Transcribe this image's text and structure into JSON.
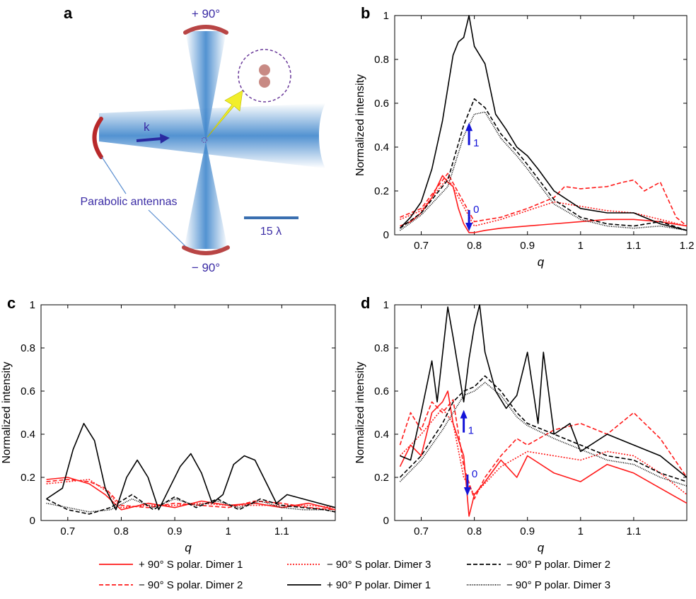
{
  "panels": {
    "a": {
      "label": "a"
    },
    "b": {
      "label": "b"
    },
    "c": {
      "label": "c"
    },
    "d": {
      "label": "d"
    }
  },
  "diagram": {
    "top_angle": "+ 90°",
    "bottom_angle": "− 90°",
    "wavevector": "k",
    "antennas_label": "Parabolic antennas",
    "scale_label": "15 λ",
    "colors": {
      "beam": "#4f92d2",
      "antenna": "#b84545",
      "arrow": "#2a2aa0",
      "pointer": "#f2ee2a",
      "text": "#3b2ca5"
    }
  },
  "chart_data": [
    {
      "panel": "b",
      "type": "line",
      "xlabel": "q",
      "ylabel": "Normalized intensity",
      "xlim": [
        0.65,
        1.2
      ],
      "ylim": [
        0,
        1
      ],
      "xticks": [
        "0.7",
        "0.8",
        "0.9",
        "1",
        "1.1",
        "1.2"
      ],
      "yticks": [
        "0",
        "0.2",
        "0.4",
        "0.6",
        "0.8",
        "1"
      ],
      "annotations": [
        {
          "text": "1",
          "x": 0.79,
          "y": 0.48,
          "direction": "up"
        },
        {
          "text": "0",
          "x": 0.79,
          "y": 0.1,
          "direction": "down"
        }
      ],
      "series": [
        {
          "name": "+ 90° S polar. Dimer 1",
          "color": "#ff1a1a",
          "dash": "solid",
          "x": [
            0.66,
            0.68,
            0.7,
            0.72,
            0.74,
            0.75,
            0.76,
            0.77,
            0.78,
            0.79,
            0.8,
            0.82,
            0.85,
            0.9,
            0.95,
            1.0,
            1.05,
            1.1,
            1.15,
            1.2
          ],
          "y": [
            0.04,
            0.06,
            0.1,
            0.17,
            0.27,
            0.24,
            0.22,
            0.12,
            0.05,
            0.01,
            0.01,
            0.02,
            0.03,
            0.04,
            0.05,
            0.06,
            0.07,
            0.07,
            0.06,
            0.04
          ]
        },
        {
          "name": "− 90° S polar. Dimer 2",
          "color": "#ff1a1a",
          "dash": "dashed",
          "x": [
            0.66,
            0.7,
            0.75,
            0.8,
            0.85,
            0.9,
            0.95,
            0.97,
            1.0,
            1.05,
            1.08,
            1.1,
            1.12,
            1.15,
            1.18,
            1.2
          ],
          "y": [
            0.08,
            0.12,
            0.28,
            0.06,
            0.08,
            0.12,
            0.17,
            0.22,
            0.21,
            0.22,
            0.24,
            0.25,
            0.2,
            0.24,
            0.08,
            0.04
          ]
        },
        {
          "name": "− 90° S polar. Dimer 3",
          "color": "#ff1a1a",
          "dash": "dotted",
          "x": [
            0.66,
            0.7,
            0.75,
            0.8,
            0.85,
            0.9,
            0.95,
            1.0,
            1.05,
            1.1,
            1.15,
            1.2
          ],
          "y": [
            0.07,
            0.11,
            0.26,
            0.04,
            0.07,
            0.11,
            0.15,
            0.13,
            0.11,
            0.1,
            0.07,
            0.04
          ]
        },
        {
          "name": "+ 90° P polar. Dimer 1",
          "color": "#000000",
          "dash": "solid",
          "x": [
            0.66,
            0.68,
            0.7,
            0.72,
            0.74,
            0.76,
            0.77,
            0.78,
            0.79,
            0.8,
            0.82,
            0.84,
            0.86,
            0.88,
            0.9,
            0.92,
            0.95,
            1.0,
            1.05,
            1.1,
            1.15,
            1.2
          ],
          "y": [
            0.03,
            0.08,
            0.15,
            0.3,
            0.52,
            0.82,
            0.88,
            0.9,
            1.0,
            0.86,
            0.78,
            0.55,
            0.48,
            0.4,
            0.36,
            0.3,
            0.2,
            0.12,
            0.1,
            0.1,
            0.05,
            0.02
          ]
        },
        {
          "name": "− 90° P polar. Dimer 2",
          "color": "#000000",
          "dash": "dashed",
          "x": [
            0.66,
            0.7,
            0.75,
            0.78,
            0.8,
            0.82,
            0.85,
            0.88,
            0.9,
            0.95,
            1.0,
            1.05,
            1.1,
            1.15,
            1.2
          ],
          "y": [
            0.03,
            0.1,
            0.25,
            0.5,
            0.62,
            0.58,
            0.46,
            0.38,
            0.32,
            0.16,
            0.08,
            0.05,
            0.04,
            0.06,
            0.02
          ]
        },
        {
          "name": "− 90° P polar. Dimer 3",
          "color": "#000000",
          "dash": "densedot",
          "x": [
            0.66,
            0.7,
            0.75,
            0.78,
            0.8,
            0.82,
            0.85,
            0.88,
            0.9,
            0.95,
            1.0,
            1.05,
            1.1,
            1.15,
            1.2
          ],
          "y": [
            0.02,
            0.09,
            0.22,
            0.45,
            0.55,
            0.56,
            0.44,
            0.36,
            0.3,
            0.14,
            0.07,
            0.04,
            0.03,
            0.04,
            0.02
          ]
        }
      ]
    },
    {
      "panel": "c",
      "type": "line",
      "xlabel": "q",
      "ylabel": "Normalized intensity",
      "xlim": [
        0.65,
        1.2
      ],
      "ylim": [
        0,
        1
      ],
      "xticks": [
        "0.7",
        "0.8",
        "0.9",
        "1",
        "1.1"
      ],
      "yticks": [
        "0",
        "0.2",
        "0.4",
        "0.6",
        "0.8",
        "1"
      ],
      "series": [
        {
          "name": "+ 90° S polar. Dimer 1",
          "color": "#ff1a1a",
          "dash": "solid",
          "x": [
            0.66,
            0.7,
            0.74,
            0.77,
            0.8,
            0.85,
            0.9,
            0.95,
            1.0,
            1.05,
            1.1,
            1.15,
            1.2
          ],
          "y": [
            0.19,
            0.2,
            0.17,
            0.12,
            0.05,
            0.08,
            0.06,
            0.09,
            0.07,
            0.08,
            0.06,
            0.08,
            0.05
          ]
        },
        {
          "name": "− 90° S polar. Dimer 2",
          "color": "#ff1a1a",
          "dash": "dashed",
          "x": [
            0.66,
            0.7,
            0.74,
            0.77,
            0.8,
            0.85,
            0.9,
            0.95,
            1.0,
            1.05,
            1.1,
            1.15,
            1.2
          ],
          "y": [
            0.18,
            0.19,
            0.18,
            0.15,
            0.07,
            0.06,
            0.08,
            0.07,
            0.06,
            0.09,
            0.08,
            0.06,
            0.05
          ]
        },
        {
          "name": "− 90° S polar. Dimer 3",
          "color": "#ff1a1a",
          "dash": "dotted",
          "x": [
            0.66,
            0.7,
            0.74,
            0.77,
            0.8,
            0.85,
            0.9,
            0.95,
            1.0,
            1.05,
            1.1,
            1.15,
            1.2
          ],
          "y": [
            0.17,
            0.18,
            0.19,
            0.14,
            0.06,
            0.07,
            0.07,
            0.08,
            0.07,
            0.07,
            0.07,
            0.07,
            0.06
          ]
        },
        {
          "name": "+ 90° P polar. Dimer 1",
          "color": "#000000",
          "dash": "solid",
          "x": [
            0.66,
            0.69,
            0.71,
            0.73,
            0.75,
            0.77,
            0.79,
            0.81,
            0.83,
            0.85,
            0.87,
            0.89,
            0.91,
            0.93,
            0.95,
            0.97,
            0.99,
            1.01,
            1.03,
            1.05,
            1.07,
            1.09,
            1.11,
            1.14,
            1.17,
            1.2
          ],
          "y": [
            0.1,
            0.15,
            0.33,
            0.45,
            0.37,
            0.15,
            0.05,
            0.2,
            0.28,
            0.2,
            0.05,
            0.15,
            0.25,
            0.31,
            0.22,
            0.08,
            0.12,
            0.26,
            0.3,
            0.28,
            0.18,
            0.08,
            0.12,
            0.1,
            0.08,
            0.06
          ]
        },
        {
          "name": "− 90° P polar. Dimer 2",
          "color": "#000000",
          "dash": "dashed",
          "x": [
            0.66,
            0.7,
            0.74,
            0.78,
            0.82,
            0.86,
            0.9,
            0.94,
            0.98,
            1.02,
            1.06,
            1.1,
            1.14,
            1.18,
            1.2
          ],
          "y": [
            0.1,
            0.05,
            0.03,
            0.06,
            0.12,
            0.05,
            0.11,
            0.06,
            0.1,
            0.05,
            0.1,
            0.07,
            0.06,
            0.05,
            0.04
          ]
        },
        {
          "name": "− 90° P polar. Dimer 3",
          "color": "#000000",
          "dash": "densedot",
          "x": [
            0.66,
            0.7,
            0.74,
            0.78,
            0.82,
            0.86,
            0.9,
            0.94,
            0.98,
            1.02,
            1.06,
            1.1,
            1.14,
            1.18,
            1.2
          ],
          "y": [
            0.08,
            0.06,
            0.04,
            0.05,
            0.1,
            0.06,
            0.1,
            0.07,
            0.09,
            0.06,
            0.09,
            0.06,
            0.05,
            0.05,
            0.04
          ]
        }
      ]
    },
    {
      "panel": "d",
      "type": "line",
      "xlabel": "q",
      "ylabel": "Normalized intensity",
      "xlim": [
        0.65,
        1.2
      ],
      "ylim": [
        0,
        1
      ],
      "xticks": [
        "0.7",
        "0.8",
        "0.9",
        "1",
        "1.1"
      ],
      "yticks": [
        "0",
        "0.2",
        "0.4",
        "0.6",
        "0.8",
        "1"
      ],
      "annotations": [
        {
          "text": "1",
          "x": 0.78,
          "y": 0.48,
          "direction": "up"
        },
        {
          "text": "0",
          "x": 0.787,
          "y": 0.2,
          "direction": "down"
        }
      ],
      "series": [
        {
          "name": "+ 90° S polar. Dimer 1",
          "color": "#ff1a1a",
          "dash": "solid",
          "x": [
            0.66,
            0.68,
            0.7,
            0.72,
            0.74,
            0.75,
            0.76,
            0.78,
            0.79,
            0.8,
            0.82,
            0.85,
            0.88,
            0.9,
            0.95,
            1.0,
            1.05,
            1.1,
            1.15,
            1.2
          ],
          "y": [
            0.25,
            0.35,
            0.3,
            0.5,
            0.55,
            0.6,
            0.45,
            0.3,
            0.02,
            0.12,
            0.18,
            0.28,
            0.2,
            0.3,
            0.22,
            0.18,
            0.26,
            0.22,
            0.15,
            0.08
          ]
        },
        {
          "name": "− 90° S polar. Dimer 2",
          "color": "#ff1a1a",
          "dash": "dashed",
          "x": [
            0.66,
            0.68,
            0.7,
            0.72,
            0.74,
            0.76,
            0.78,
            0.8,
            0.82,
            0.85,
            0.88,
            0.9,
            0.95,
            1.0,
            1.05,
            1.1,
            1.15,
            1.2
          ],
          "y": [
            0.35,
            0.5,
            0.42,
            0.55,
            0.5,
            0.56,
            0.25,
            0.1,
            0.2,
            0.3,
            0.38,
            0.35,
            0.42,
            0.45,
            0.4,
            0.5,
            0.38,
            0.2
          ]
        },
        {
          "name": "− 90° S polar. Dimer 3",
          "color": "#ff1a1a",
          "dash": "dotted",
          "x": [
            0.66,
            0.7,
            0.74,
            0.76,
            0.78,
            0.8,
            0.85,
            0.9,
            0.95,
            1.0,
            1.05,
            1.1,
            1.15,
            1.2
          ],
          "y": [
            0.3,
            0.4,
            0.52,
            0.45,
            0.2,
            0.12,
            0.25,
            0.32,
            0.3,
            0.28,
            0.32,
            0.3,
            0.22,
            0.12
          ]
        },
        {
          "name": "+ 90° P polar. Dimer 1",
          "color": "#000000",
          "dash": "solid",
          "x": [
            0.66,
            0.68,
            0.7,
            0.72,
            0.73,
            0.75,
            0.76,
            0.78,
            0.79,
            0.8,
            0.81,
            0.82,
            0.84,
            0.86,
            0.88,
            0.9,
            0.92,
            0.93,
            0.95,
            0.98,
            1.0,
            1.05,
            1.1,
            1.15,
            1.2
          ],
          "y": [
            0.3,
            0.28,
            0.5,
            0.74,
            0.55,
            0.99,
            0.85,
            0.55,
            0.75,
            0.9,
            1.0,
            0.78,
            0.6,
            0.52,
            0.58,
            0.78,
            0.45,
            0.78,
            0.4,
            0.45,
            0.32,
            0.4,
            0.35,
            0.3,
            0.2
          ]
        },
        {
          "name": "− 90° P polar. Dimer 2",
          "color": "#000000",
          "dash": "dashed",
          "x": [
            0.66,
            0.7,
            0.74,
            0.76,
            0.78,
            0.8,
            0.82,
            0.85,
            0.88,
            0.9,
            0.95,
            1.0,
            1.05,
            1.1,
            1.15,
            1.2
          ],
          "y": [
            0.2,
            0.3,
            0.45,
            0.55,
            0.6,
            0.62,
            0.67,
            0.6,
            0.5,
            0.45,
            0.4,
            0.35,
            0.3,
            0.28,
            0.22,
            0.18
          ]
        },
        {
          "name": "− 90° P polar. Dimer 3",
          "color": "#000000",
          "dash": "densedot",
          "x": [
            0.66,
            0.7,
            0.74,
            0.76,
            0.78,
            0.8,
            0.82,
            0.85,
            0.88,
            0.9,
            0.95,
            1.0,
            1.05,
            1.1,
            1.15,
            1.2
          ],
          "y": [
            0.18,
            0.28,
            0.42,
            0.5,
            0.58,
            0.6,
            0.64,
            0.58,
            0.48,
            0.44,
            0.38,
            0.33,
            0.28,
            0.26,
            0.2,
            0.16
          ]
        }
      ]
    }
  ],
  "legend": {
    "placement": "bottom",
    "items": [
      {
        "label": "+ 90° S polar. Dimer 1",
        "color": "#ff1a1a",
        "dash": "solid"
      },
      {
        "label": "− 90° S polar. Dimer 3",
        "color": "#ff1a1a",
        "dash": "dotted"
      },
      {
        "label": "− 90° P polar. Dimer 2",
        "color": "#000000",
        "dash": "dashed"
      },
      {
        "label": "− 90° S polar. Dimer 2",
        "color": "#ff1a1a",
        "dash": "dashed"
      },
      {
        "label": "+ 90° P polar. Dimer 1",
        "color": "#000000",
        "dash": "solid"
      },
      {
        "label": "− 90° P polar. Dimer 3",
        "color": "#000000",
        "dash": "densedot"
      }
    ]
  }
}
